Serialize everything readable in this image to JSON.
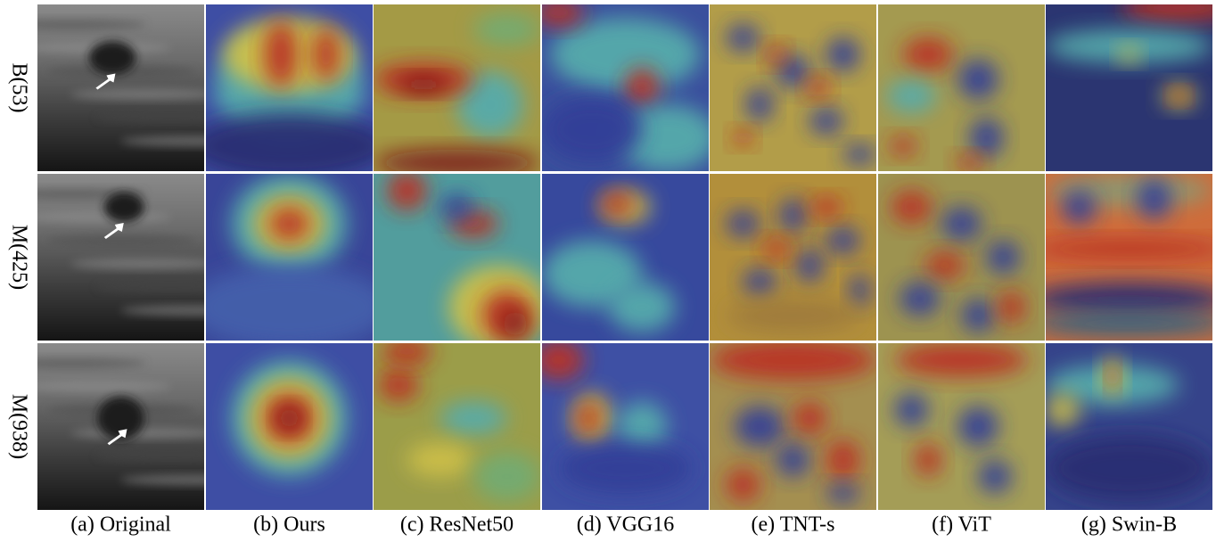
{
  "row_labels": [
    "B(53)",
    "M(425)",
    "M(938)"
  ],
  "column_captions": [
    "(a) Original",
    "(b) Ours",
    "(c) ResNet50",
    "(d) VGG16",
    "(e) TNT-s",
    "(f) ViT",
    "(g) Swin-B"
  ]
}
